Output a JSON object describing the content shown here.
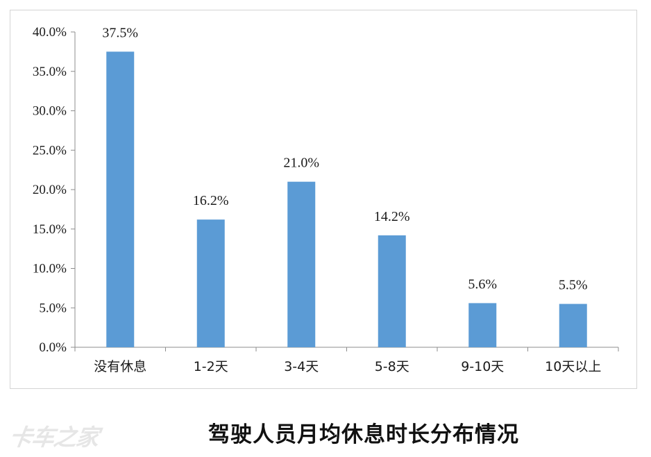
{
  "chart_data": {
    "type": "bar",
    "title": "驾驶人员月均休息时长分布情况",
    "xlabel": "",
    "ylabel": "",
    "categories": [
      "没有休息",
      "1-2天",
      "3-4天",
      "5-8天",
      "9-10天",
      "10天以上"
    ],
    "values": [
      37.5,
      16.2,
      21.0,
      14.2,
      5.6,
      5.5
    ],
    "data_labels": [
      "37.5%",
      "16.2%",
      "21.0%",
      "14.2%",
      "5.6%",
      "5.5%"
    ],
    "ylim": [
      0,
      40
    ],
    "yticks": [
      0,
      5,
      10,
      15,
      20,
      25,
      30,
      35,
      40
    ],
    "ytick_labels": [
      "0.0%",
      "5.0%",
      "10.0%",
      "15.0%",
      "20.0%",
      "25.0%",
      "30.0%",
      "35.0%",
      "40.0%"
    ],
    "grid": false,
    "legend": "none",
    "bar_color": "#5b9bd5",
    "axis_color": "#8c8c8c"
  },
  "watermark": {
    "text": "卡车之家"
  }
}
